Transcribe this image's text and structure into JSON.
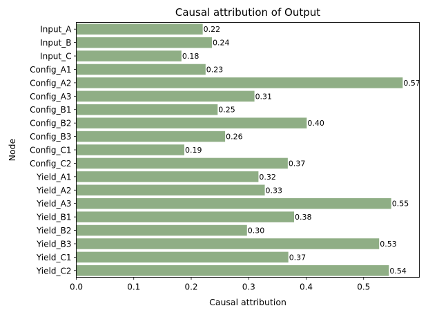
{
  "chart_data": {
    "type": "bar",
    "orientation": "horizontal",
    "title": "Causal attribution of Output",
    "xlabel": "Causal attribution",
    "ylabel": "Node",
    "xlim": [
      0.0,
      0.597
    ],
    "xticks": [
      0.0,
      0.1,
      0.2,
      0.3,
      0.4,
      0.5
    ],
    "xtick_labels": [
      "0.0",
      "0.1",
      "0.2",
      "0.3",
      "0.4",
      "0.5"
    ],
    "bar_color": "#8fae85",
    "grid": false,
    "categories": [
      "Input_A",
      "Input_B",
      "Input_C",
      "Config_A1",
      "Config_A2",
      "Config_A3",
      "Config_B1",
      "Config_B2",
      "Config_B3",
      "Config_C1",
      "Config_C2",
      "Yield_A1",
      "Yield_A2",
      "Yield_A3",
      "Yield_B1",
      "Yield_B2",
      "Yield_B3",
      "Yield_C1",
      "Yield_C2"
    ],
    "values": [
      0.22,
      0.236,
      0.183,
      0.225,
      0.568,
      0.31,
      0.246,
      0.401,
      0.259,
      0.188,
      0.368,
      0.317,
      0.328,
      0.548,
      0.379,
      0.297,
      0.527,
      0.369,
      0.544
    ],
    "value_labels": [
      "0.22",
      "0.24",
      "0.18",
      "0.23",
      "0.57",
      "0.31",
      "0.25",
      "0.40",
      "0.26",
      "0.19",
      "0.37",
      "0.32",
      "0.33",
      "0.55",
      "0.38",
      "0.30",
      "0.53",
      "0.37",
      "0.54"
    ]
  }
}
